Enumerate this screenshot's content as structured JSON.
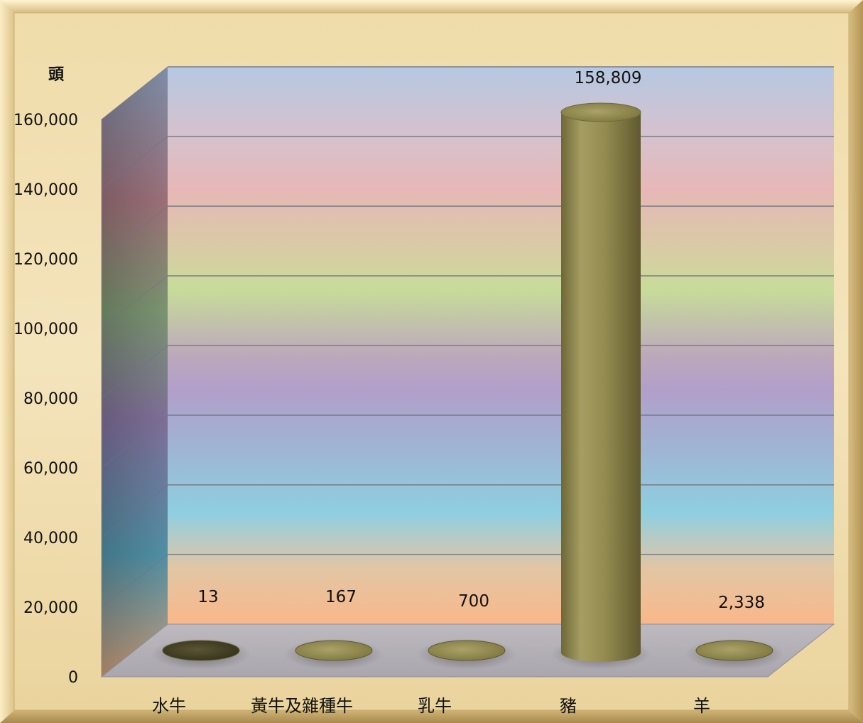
{
  "chart_data": {
    "type": "bar",
    "ylabel": "頭",
    "categories": [
      "水牛",
      "黃牛及雜種牛",
      "乳牛",
      "豬",
      "羊"
    ],
    "values": [
      13,
      167,
      700,
      158809,
      2338
    ],
    "data_labels": [
      "13",
      "167",
      "700",
      "158,809",
      "2,338"
    ],
    "ylim": [
      0,
      160000
    ],
    "yticks": [
      {
        "value": 0,
        "label": "0"
      },
      {
        "value": 20000,
        "label": "20,000"
      },
      {
        "value": 40000,
        "label": "40,000"
      },
      {
        "value": 60000,
        "label": "60,000"
      },
      {
        "value": 80000,
        "label": "80,000"
      },
      {
        "value": 100000,
        "label": "100,000"
      },
      {
        "value": 120000,
        "label": "120,000"
      },
      {
        "value": 140000,
        "label": "140,000"
      },
      {
        "value": 160000,
        "label": "160,000"
      }
    ],
    "grid": true,
    "legend": "none",
    "bar_color": "#948b50",
    "first_bar_color": "#4a4628"
  }
}
